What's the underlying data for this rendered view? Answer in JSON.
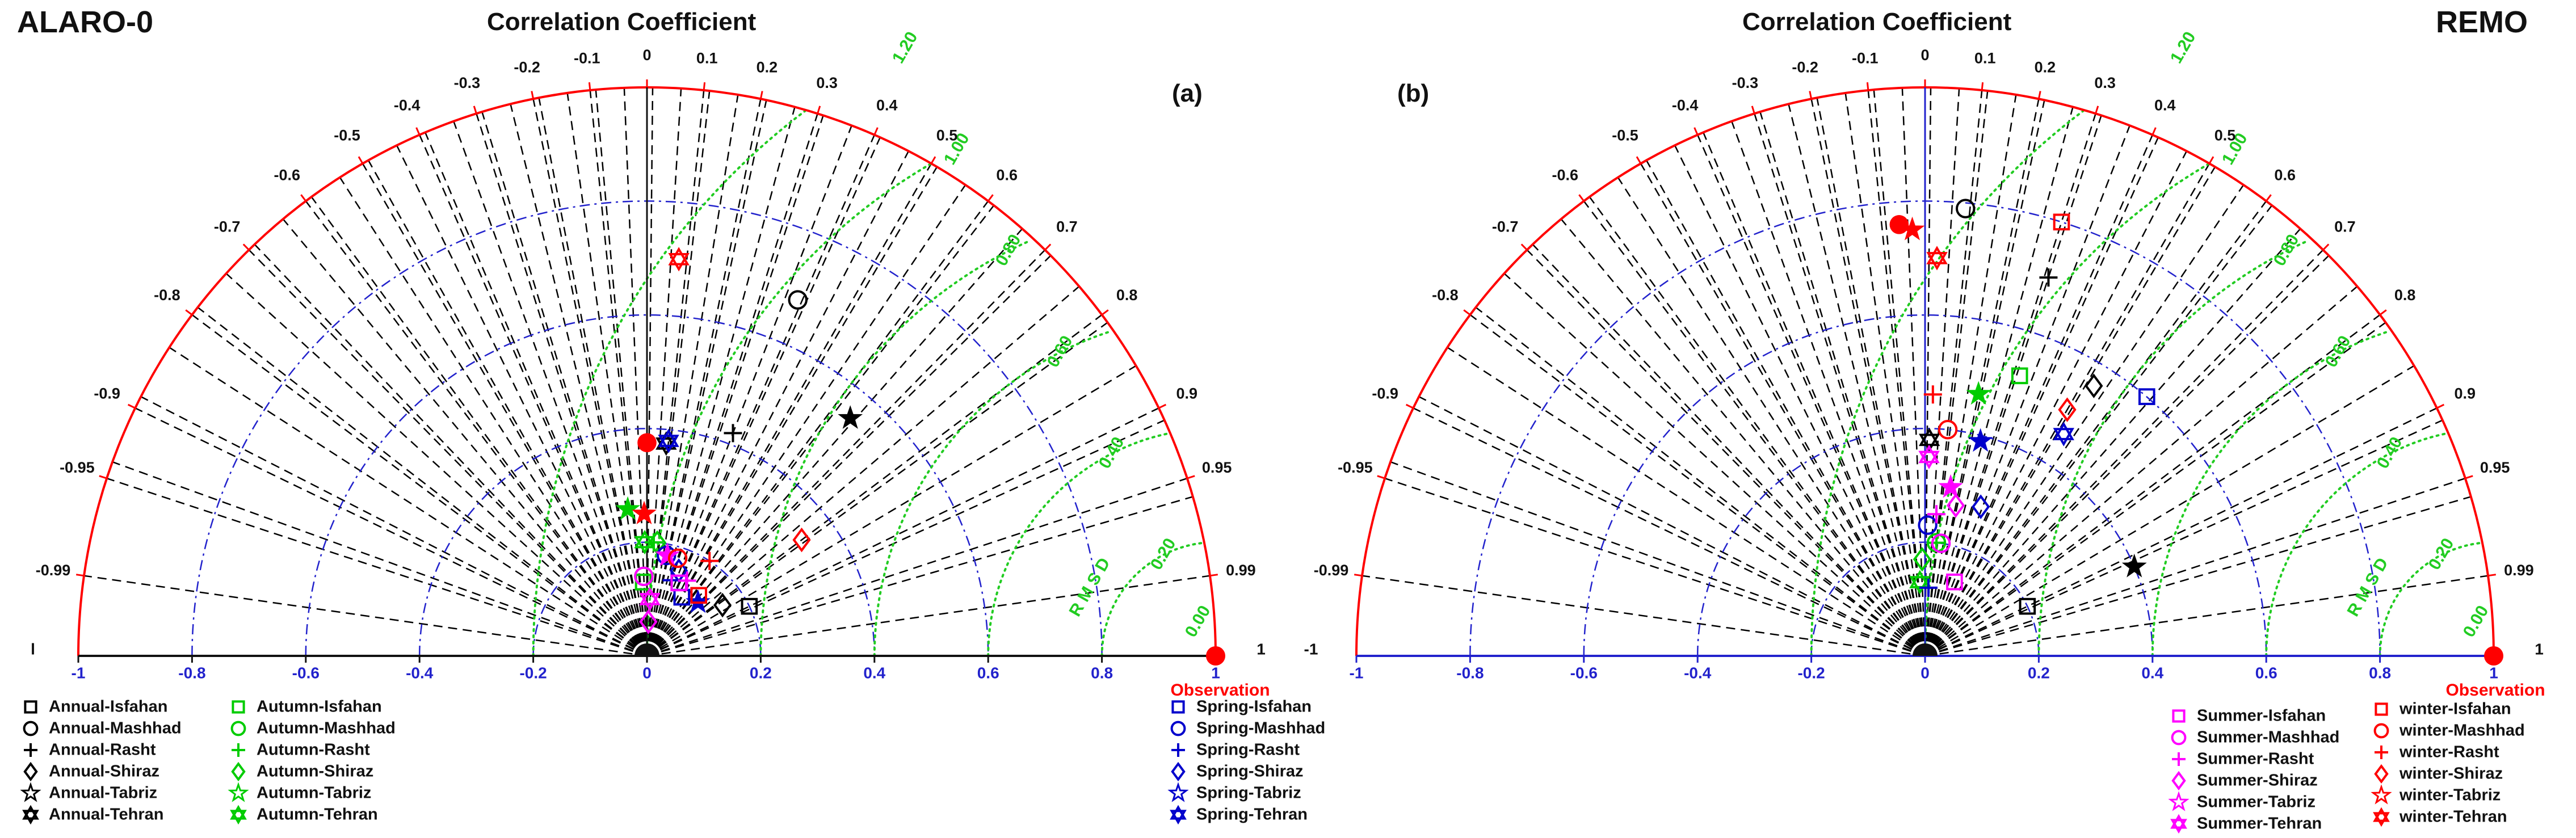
{
  "labels": {
    "left_model": "ALARO-0",
    "right_model": "REMO",
    "panel_title": "Correlation Coefficient",
    "panel_a": "(a)",
    "panel_b": "(b)",
    "observation": "Observation",
    "rmsd": "R M S D"
  },
  "colors": {
    "annual": "#000000",
    "autumn": "#00cc00",
    "spring": "#0000cc",
    "summer": "#ff00ff",
    "winter": "#ff0000",
    "axis": "#ff0000",
    "std_contour": "#2222cc",
    "rmsd_contour": "#22cc22",
    "corr_lines": "#000000"
  },
  "chart_data": [
    {
      "type": "scatter",
      "subtype": "taylor-diagram",
      "title": "Correlation Coefficient",
      "panel": "(a)",
      "model": "ALARO-0",
      "x_ticks": [
        "-1",
        "-0.8",
        "-0.6",
        "-0.4",
        "-0.2",
        "0",
        "0.2",
        "0.4",
        "0.6",
        "0.8",
        "1"
      ],
      "xlim": [
        -1,
        1
      ],
      "correlation_ticks": [
        -0.99,
        -0.95,
        -0.9,
        -0.8,
        -0.7,
        -0.6,
        -0.5,
        -0.4,
        -0.3,
        -0.2,
        -0.1,
        0,
        0.1,
        0.2,
        0.3,
        0.4,
        0.5,
        0.6,
        0.7,
        0.8,
        0.9,
        0.95,
        0.99
      ],
      "correlation_tick_labels": [
        "-0.99",
        "-0.95",
        "-0.9",
        "-0.8",
        "-0.7",
        "-0.6",
        "-0.5",
        "-0.4",
        "-0.3",
        "-0.2",
        "-0.1",
        "0",
        "0.1",
        "0.2",
        "0.3",
        "0.4",
        "0.5",
        "0.6",
        "0.7",
        "0.8",
        "0.9",
        "0.95",
        "0.99"
      ],
      "end_labels": [
        "l",
        "1"
      ],
      "std_contours": [
        0.2,
        0.4,
        0.6,
        0.8,
        1.0
      ],
      "rmsd_contours": [
        {
          "value": 0.0,
          "label": "0.00"
        },
        {
          "value": 0.2,
          "label": "0.20"
        },
        {
          "value": 0.4,
          "label": "0.40"
        },
        {
          "value": 0.6,
          "label": "0.60"
        },
        {
          "value": 0.8,
          "label": "0.80"
        },
        {
          "value": 1.0,
          "label": "1.00"
        },
        {
          "value": 1.2,
          "label": "1.20"
        }
      ],
      "observation": {
        "std": 1.0,
        "corr": 1.0
      },
      "series": [
        {
          "name": "Annual-Isfahan",
          "group": "annual",
          "marker": "square",
          "std": 0.2,
          "corr": 0.9
        },
        {
          "name": "Annual-Mashhad",
          "group": "annual",
          "marker": "circle",
          "std": 0.68,
          "corr": 0.39
        },
        {
          "name": "Annual-Rasht",
          "group": "annual",
          "marker": "plus",
          "std": 0.42,
          "corr": 0.36
        },
        {
          "name": "Annual-Shiraz",
          "group": "annual",
          "marker": "diamond",
          "std": 0.16,
          "corr": 0.83
        },
        {
          "name": "Annual-Tabriz",
          "group": "annual",
          "marker": "pentagram",
          "std": 0.55,
          "corr": 0.65
        },
        {
          "name": "Annual-Tehran",
          "group": "annual",
          "marker": "hexagram",
          "std": 0.375,
          "corr": 0.09
        },
        {
          "name": "Autumn-Isfahan",
          "group": "autumn",
          "marker": "square",
          "std": 0.13,
          "corr": -0.05
        },
        {
          "name": "Autumn-Mashhad",
          "group": "autumn",
          "marker": "circle",
          "std": 0.14,
          "corr": -0.04
        },
        {
          "name": "Autumn-Rasht",
          "group": "autumn",
          "marker": "plus",
          "std": 0.2,
          "corr": 0.06
        },
        {
          "name": "Autumn-Shiraz",
          "group": "autumn",
          "marker": "diamond",
          "std": 0.2,
          "corr": 0.09
        },
        {
          "name": "Autumn-Tabriz",
          "group": "autumn",
          "marker": "pentagram",
          "std": 0.26,
          "corr": -0.13
        },
        {
          "name": "Autumn-Tehran",
          "group": "autumn",
          "marker": "hexagram",
          "std": 0.2,
          "corr": -0.02
        },
        {
          "name": "Spring-Isfahan",
          "group": "spring",
          "marker": "square",
          "std": 0.12,
          "corr": 0.51
        },
        {
          "name": "Spring-Mashhad",
          "group": "spring",
          "marker": "circle",
          "std": 0.18,
          "corr": 0.19
        },
        {
          "name": "Spring-Rasht",
          "group": "spring",
          "marker": "plus",
          "std": 0.14,
          "corr": 0.31
        },
        {
          "name": "Spring-Shiraz",
          "group": "spring",
          "marker": "diamond",
          "std": 0.16,
          "corr": 0.35
        },
        {
          "name": "Spring-Tabriz",
          "group": "spring",
          "marker": "pentagram",
          "std": 0.13,
          "corr": 0.69
        },
        {
          "name": "Spring-Tehran",
          "group": "spring",
          "marker": "hexagram",
          "std": 0.38,
          "corr": 0.1
        },
        {
          "name": "Summer-Isfahan",
          "group": "summer",
          "marker": "square",
          "std": 0.14,
          "corr": 0.4
        },
        {
          "name": "Summer-Mashhad",
          "group": "summer",
          "marker": "circle",
          "std": 0.14,
          "corr": -0.04
        },
        {
          "name": "Summer-Rasht",
          "group": "summer",
          "marker": "plus",
          "std": 0.15,
          "corr": 0.47
        },
        {
          "name": "Summer-Shiraz",
          "group": "summer",
          "marker": "diamond",
          "std": 0.06,
          "corr": 0.04
        },
        {
          "name": "Summer-Tabriz",
          "group": "summer",
          "marker": "pentagram",
          "std": 0.18,
          "corr": 0.2
        },
        {
          "name": "Summer-Tehran",
          "group": "summer",
          "marker": "hexagram",
          "std": 0.1,
          "corr": 0.05
        },
        {
          "name": "winter-Isfahan",
          "group": "winter",
          "marker": "square",
          "std": 0.14,
          "corr": 0.65
        },
        {
          "name": "winter-Mashhad",
          "group": "winter",
          "marker": "circle",
          "std": 0.18,
          "corr": 0.3
        },
        {
          "name": "winter-Rasht",
          "group": "winter",
          "marker": "plus",
          "std": 0.2,
          "corr": 0.55
        },
        {
          "name": "winter-Shiraz",
          "group": "winter",
          "marker": "diamond",
          "std": 0.34,
          "corr": 0.8
        },
        {
          "name": "winter-Tabriz",
          "group": "winter",
          "marker": "pentagram",
          "std": 0.25,
          "corr": -0.02
        },
        {
          "name": "winter-Tehran",
          "group": "winter",
          "marker": "hexagram",
          "std": 0.7,
          "corr": 0.08
        }
      ],
      "extra_points": [
        {
          "name": "",
          "group": "winter",
          "marker": "filled-circle",
          "std": 0.375,
          "corr": 0.0
        }
      ]
    },
    {
      "type": "scatter",
      "subtype": "taylor-diagram",
      "title": "Correlation Coefficient",
      "panel": "(b)",
      "model": "REMO",
      "x_ticks": [
        "-1",
        "-0.8",
        "-0.6",
        "-0.4",
        "-0.2",
        "0",
        "0.2",
        "0.4",
        "0.6",
        "0.8",
        "1"
      ],
      "xlim": [
        -1,
        1
      ],
      "correlation_ticks": [
        -0.99,
        -0.95,
        -0.9,
        -0.8,
        -0.7,
        -0.6,
        -0.5,
        -0.4,
        -0.3,
        -0.2,
        -0.1,
        0,
        0.1,
        0.2,
        0.3,
        0.4,
        0.5,
        0.6,
        0.7,
        0.8,
        0.9,
        0.95,
        0.99
      ],
      "correlation_tick_labels": [
        "-0.99",
        "-0.95",
        "-0.9",
        "-0.8",
        "-0.7",
        "-0.6",
        "-0.5",
        "-0.4",
        "-0.3",
        "-0.2",
        "-0.1",
        "0",
        "0.1",
        "0.2",
        "0.3",
        "0.4",
        "0.5",
        "0.6",
        "0.7",
        "0.8",
        "0.9",
        "0.95",
        "0.99"
      ],
      "end_labels": [
        "-1",
        "1"
      ],
      "std_contours": [
        0.2,
        0.4,
        0.6,
        0.8,
        1.0
      ],
      "rmsd_contours": [
        {
          "value": 0.0,
          "label": "0.00"
        },
        {
          "value": 0.2,
          "label": "0.20"
        },
        {
          "value": 0.4,
          "label": "0.40"
        },
        {
          "value": 0.6,
          "label": "0.60"
        },
        {
          "value": 0.8,
          "label": "0.80"
        },
        {
          "value": 1.0,
          "label": "1.00"
        },
        {
          "value": 1.2,
          "label": "1.20"
        }
      ],
      "observation": {
        "std": 1.0,
        "corr": 1.0
      },
      "series": [
        {
          "name": "Annual-Isfahan",
          "group": "annual",
          "marker": "square",
          "std": 0.2,
          "corr": 0.9
        },
        {
          "name": "Annual-Mashhad",
          "group": "annual",
          "marker": "circle",
          "std": 0.79,
          "corr": 0.09
        },
        {
          "name": "Annual-Rasht",
          "group": "annual",
          "marker": "plus",
          "std": 0.7,
          "corr": 0.31
        },
        {
          "name": "Annual-Shiraz",
          "group": "annual",
          "marker": "diamond",
          "std": 0.56,
          "corr": 0.53
        },
        {
          "name": "Annual-Tabriz",
          "group": "annual",
          "marker": "pentagram",
          "std": 0.4,
          "corr": 0.92
        },
        {
          "name": "Annual-Tehran",
          "group": "annual",
          "marker": "hexagram",
          "std": 0.38,
          "corr": 0.02
        },
        {
          "name": "Autumn-Isfahan",
          "group": "autumn",
          "marker": "square",
          "std": 0.52,
          "corr": 0.32
        },
        {
          "name": "Autumn-Mashhad",
          "group": "autumn",
          "marker": "circle",
          "std": 0.2,
          "corr": 0.1
        },
        {
          "name": "Autumn-Rasht",
          "group": "autumn",
          "marker": "plus",
          "std": 0.2,
          "corr": 0.1
        },
        {
          "name": "Autumn-Shiraz",
          "group": "autumn",
          "marker": "diamond",
          "std": 0.17,
          "corr": -0.03
        },
        {
          "name": "Autumn-Tabriz",
          "group": "autumn",
          "marker": "pentagram",
          "std": 0.47,
          "corr": 0.2
        },
        {
          "name": "Autumn-Tehran",
          "group": "autumn",
          "marker": "hexagram",
          "std": 0.13,
          "corr": -0.07
        },
        {
          "name": "Spring-Isfahan",
          "group": "spring",
          "marker": "square",
          "std": 0.6,
          "corr": 0.65
        },
        {
          "name": "Spring-Mashhad",
          "group": "spring",
          "marker": "circle",
          "std": 0.23,
          "corr": 0.02
        },
        {
          "name": "Spring-Rasht",
          "group": "spring",
          "marker": "plus",
          "std": 0.12,
          "corr": 0.05
        },
        {
          "name": "Spring-Shiraz",
          "group": "spring",
          "marker": "diamond",
          "std": 0.28,
          "corr": 0.35
        },
        {
          "name": "Spring-Tabriz",
          "group": "spring",
          "marker": "pentagram",
          "std": 0.39,
          "corr": 0.25
        },
        {
          "name": "Spring-Tehran",
          "group": "spring",
          "marker": "hexagram",
          "std": 0.46,
          "corr": 0.53
        },
        {
          "name": "Summer-Isfahan",
          "group": "summer",
          "marker": "square",
          "std": 0.14,
          "corr": 0.37
        },
        {
          "name": "Summer-Mashhad",
          "group": "summer",
          "marker": "circle",
          "std": 0.2,
          "corr": 0.14
        },
        {
          "name": "Summer-Rasht",
          "group": "summer",
          "marker": "plus",
          "std": 0.25,
          "corr": 0.08
        },
        {
          "name": "Summer-Shiraz",
          "group": "summer",
          "marker": "diamond",
          "std": 0.27,
          "corr": 0.2
        },
        {
          "name": "Summer-Tabriz",
          "group": "summer",
          "marker": "pentagram",
          "std": 0.3,
          "corr": 0.15
        },
        {
          "name": "Summer-Tehran",
          "group": "summer",
          "marker": "hexagram",
          "std": 0.35,
          "corr": 0.02
        },
        {
          "name": "winter-Isfahan",
          "group": "winter",
          "marker": "square",
          "std": 0.8,
          "corr": 0.3
        },
        {
          "name": "winter-Mashhad",
          "group": "winter",
          "marker": "circle",
          "std": 0.4,
          "corr": 0.1
        },
        {
          "name": "winter-Rasht",
          "group": "winter",
          "marker": "plus",
          "std": 0.46,
          "corr": 0.03
        },
        {
          "name": "winter-Shiraz",
          "group": "winter",
          "marker": "diamond",
          "std": 0.5,
          "corr": 0.5
        },
        {
          "name": "winter-Tabriz",
          "group": "winter",
          "marker": "pentagram",
          "std": 0.75,
          "corr": -0.03
        },
        {
          "name": "winter-Tehran",
          "group": "winter",
          "marker": "hexagram",
          "std": 0.7,
          "corr": 0.03
        }
      ],
      "extra_points": [
        {
          "name": "",
          "group": "winter",
          "marker": "filled-circle",
          "std": 0.76,
          "corr": -0.06
        }
      ]
    }
  ],
  "legends": {
    "annual": [
      "Annual-Isfahan",
      "Annual-Mashhad",
      "Annual-Rasht",
      "Annual-Shiraz",
      "Annual-Tabriz",
      "Annual-Tehran"
    ],
    "autumn": [
      "Autumn-Isfahan",
      "Autumn-Mashhad",
      "Autumn-Rasht",
      "Autumn-Shiraz",
      "Autumn-Tabriz",
      "Autumn-Tehran"
    ],
    "spring": [
      "Spring-Isfahan",
      "Spring-Mashhad",
      "Spring-Rasht",
      "Spring-Shiraz",
      "Spring-Tabriz",
      "Spring-Tehran"
    ],
    "summer": [
      "Summer-Isfahan",
      "Summer-Mashhad",
      "Summer-Rasht",
      "Summer-Shiraz",
      "Summer-Tabriz",
      "Summer-Tehran"
    ],
    "winter": [
      "winter-Isfahan",
      "winter-Mashhad",
      "winter-Rasht",
      "winter-Shiraz",
      "winter-Tabriz",
      "winter-Tehran"
    ]
  },
  "legend_markers": [
    "square",
    "circle",
    "plus",
    "diamond",
    "pentagram",
    "hexagram"
  ]
}
